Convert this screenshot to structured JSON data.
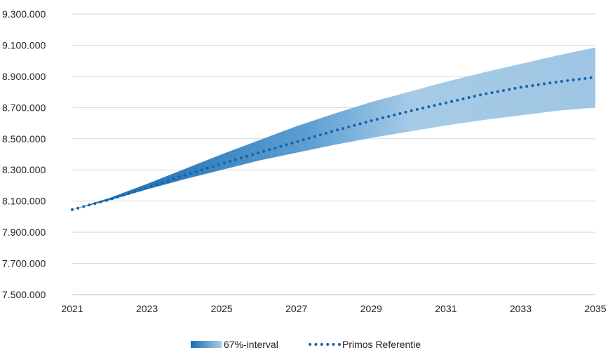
{
  "chart_data": {
    "type": "area",
    "title": "",
    "xlabel": "",
    "ylabel": "",
    "x": [
      2021,
      2022,
      2023,
      2024,
      2025,
      2026,
      2027,
      2028,
      2029,
      2030,
      2031,
      2032,
      2033,
      2034,
      2035
    ],
    "xticks": [
      "2021",
      "2023",
      "2025",
      "2027",
      "2029",
      "2031",
      "2033",
      "2035"
    ],
    "xlim": [
      2021,
      2035
    ],
    "ylim": [
      7500000,
      9300000
    ],
    "yticks": [
      "7.500.000",
      "7.700.000",
      "7.900.000",
      "8.100.000",
      "8.300.000",
      "8.500.000",
      "8.700.000",
      "8.900.000",
      "9.100.000",
      "9.300.000"
    ],
    "yticks_values": [
      7500000,
      7700000,
      7900000,
      8100000,
      8300000,
      8500000,
      8700000,
      8900000,
      9100000,
      9300000
    ],
    "grid": true,
    "legend_position": "bottom",
    "series": [
      {
        "name": "67%-interval",
        "kind": "band",
        "color": "#3a86c0",
        "upper": [
          8045000,
          8120000,
          8210000,
          8305000,
          8400000,
          8490000,
          8580000,
          8660000,
          8735000,
          8800000,
          8865000,
          8925000,
          8980000,
          9035000,
          9085000
        ],
        "lower": [
          8045000,
          8105000,
          8175000,
          8240000,
          8300000,
          8360000,
          8410000,
          8460000,
          8505000,
          8545000,
          8585000,
          8620000,
          8650000,
          8680000,
          8700000
        ]
      },
      {
        "name": "Primos Referentie",
        "kind": "line",
        "style": "dotted",
        "color": "#1464a8",
        "values": [
          8045000,
          8110000,
          8185000,
          8265000,
          8340000,
          8410000,
          8480000,
          8550000,
          8615000,
          8675000,
          8730000,
          8785000,
          8830000,
          8865000,
          8895000
        ]
      }
    ]
  }
}
